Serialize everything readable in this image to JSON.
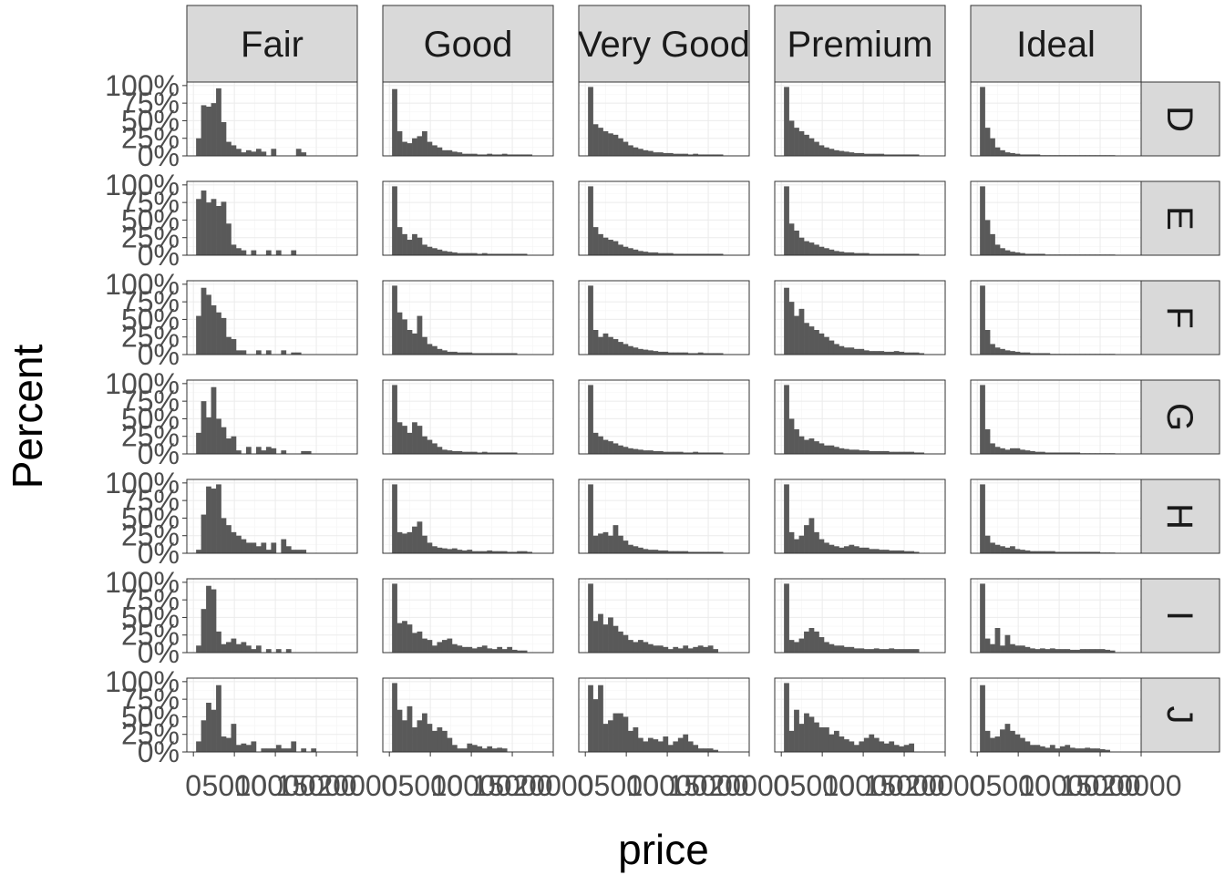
{
  "chart_data": {
    "type": "bar",
    "subtype": "faceted-histogram",
    "xlabel": "price",
    "ylabel": "Percent",
    "facet_cols": [
      "Fair",
      "Good",
      "Very Good",
      "Premium",
      "Ideal"
    ],
    "facet_rows": [
      "D",
      "E",
      "F",
      "G",
      "H",
      "I",
      "J"
    ],
    "x_breaks": [
      0,
      5000,
      10000,
      15000,
      20000
    ],
    "x_tick_labels": [
      "0",
      "5000",
      "10000",
      "15000",
      "20000"
    ],
    "xlim": [
      -800,
      20000
    ],
    "y_breaks": [
      0,
      0.25,
      0.5,
      0.75,
      1
    ],
    "y_tick_labels": [
      "0%",
      "25%",
      "50%",
      "75%",
      "100%"
    ],
    "ylim": [
      0,
      1.05
    ],
    "bin_start": 326,
    "bin_width": 610,
    "grid": true,
    "bar_color": "#595959",
    "strip_fill": "#d9d9d9",
    "panels": {
      "Fair": {
        "D": [
          0.25,
          0.72,
          0.7,
          0.75,
          0.96,
          0.48,
          0.2,
          0.15,
          0.1,
          0.05,
          0.08,
          0.06,
          0.1,
          0.06,
          0,
          0.1,
          0,
          0,
          0,
          0,
          0.1,
          0.05,
          0,
          0,
          0,
          0,
          0,
          0,
          0,
          0,
          0
        ],
        "E": [
          0.8,
          0.92,
          0.75,
          0.8,
          0.7,
          0.76,
          0.45,
          0.15,
          0.1,
          0.07,
          0,
          0.07,
          0,
          0,
          0.07,
          0,
          0.07,
          0,
          0,
          0.07,
          0,
          0,
          0,
          0,
          0,
          0,
          0,
          0,
          0,
          0,
          0
        ],
        "F": [
          0.55,
          0.95,
          0.85,
          0.7,
          0.6,
          0.52,
          0.25,
          0.22,
          0.06,
          0.06,
          0,
          0,
          0.06,
          0,
          0.06,
          0,
          0,
          0.06,
          0,
          0.03,
          0.03,
          0,
          0,
          0,
          0,
          0,
          0,
          0,
          0,
          0,
          0
        ],
        "G": [
          0.3,
          0.75,
          0.52,
          0.95,
          0.5,
          0.38,
          0.22,
          0.25,
          0.05,
          0,
          0.1,
          0,
          0.1,
          0.05,
          0.1,
          0.08,
          0,
          0.05,
          0,
          0,
          0,
          0.04,
          0.04,
          0,
          0,
          0,
          0,
          0,
          0,
          0,
          0
        ],
        "H": [
          0.05,
          0.55,
          0.95,
          0.92,
          0.98,
          0.5,
          0.4,
          0.3,
          0.25,
          0.2,
          0.15,
          0.15,
          0.1,
          0.15,
          0.05,
          0.15,
          0,
          0.2,
          0.1,
          0.05,
          0.05,
          0.05,
          0,
          0,
          0,
          0,
          0,
          0,
          0,
          0,
          0
        ],
        "I": [
          0.1,
          0.62,
          0.95,
          0.9,
          0.3,
          0.12,
          0.15,
          0.2,
          0.12,
          0.15,
          0.1,
          0.05,
          0.1,
          0,
          0.05,
          0,
          0.05,
          0,
          0.05,
          0,
          0,
          0,
          0,
          0,
          0,
          0,
          0,
          0,
          0,
          0,
          0
        ],
        "J": [
          0.15,
          0.45,
          0.7,
          0.6,
          0.95,
          0.22,
          0.2,
          0.4,
          0.1,
          0.12,
          0.1,
          0.15,
          0,
          0.05,
          0.05,
          0.05,
          0.1,
          0.05,
          0.05,
          0.15,
          0,
          0.05,
          0,
          0.05,
          0,
          0,
          0,
          0,
          0,
          0,
          0
        ]
      },
      "Good": {
        "D": [
          0.95,
          0.35,
          0.2,
          0.18,
          0.25,
          0.28,
          0.35,
          0.2,
          0.15,
          0.12,
          0.08,
          0.08,
          0.06,
          0.05,
          0.03,
          0.03,
          0.03,
          0.02,
          0.02,
          0.03,
          0.02,
          0.02,
          0.03,
          0.02,
          0.02,
          0.02,
          0.02,
          0.02,
          0,
          0,
          0
        ],
        "E": [
          0.98,
          0.4,
          0.3,
          0.22,
          0.3,
          0.25,
          0.15,
          0.12,
          0.1,
          0.08,
          0.06,
          0.05,
          0.04,
          0.03,
          0.03,
          0.03,
          0.03,
          0.02,
          0.03,
          0.02,
          0.02,
          0.02,
          0.02,
          0.02,
          0.02,
          0.02,
          0.02,
          0,
          0,
          0,
          0
        ],
        "F": [
          0.98,
          0.6,
          0.5,
          0.35,
          0.3,
          0.55,
          0.25,
          0.15,
          0.12,
          0.08,
          0.06,
          0.04,
          0.04,
          0.03,
          0.03,
          0.03,
          0.02,
          0.02,
          0.02,
          0.02,
          0.02,
          0.02,
          0.02,
          0.02,
          0.02,
          0,
          0,
          0,
          0,
          0,
          0
        ],
        "G": [
          0.98,
          0.45,
          0.4,
          0.3,
          0.45,
          0.4,
          0.25,
          0.2,
          0.15,
          0.1,
          0.06,
          0.05,
          0.04,
          0.04,
          0.03,
          0.03,
          0.03,
          0.02,
          0.03,
          0.02,
          0.02,
          0.02,
          0.02,
          0.02,
          0.02,
          0,
          0,
          0,
          0,
          0,
          0
        ],
        "H": [
          0.98,
          0.3,
          0.28,
          0.3,
          0.38,
          0.45,
          0.25,
          0.15,
          0.1,
          0.08,
          0.07,
          0.06,
          0.07,
          0.05,
          0.04,
          0.05,
          0.03,
          0.03,
          0.03,
          0.04,
          0.03,
          0.03,
          0.03,
          0.02,
          0.02,
          0.03,
          0.03,
          0.02,
          0,
          0,
          0
        ],
        "I": [
          0.98,
          0.42,
          0.45,
          0.4,
          0.28,
          0.3,
          0.2,
          0.18,
          0.1,
          0.15,
          0.18,
          0.2,
          0.12,
          0.1,
          0.08,
          0.08,
          0.06,
          0.08,
          0.1,
          0.06,
          0.05,
          0.08,
          0.05,
          0.08,
          0.04,
          0.03,
          0.03,
          0,
          0,
          0,
          0
        ],
        "J": [
          0.98,
          0.6,
          0.45,
          0.65,
          0.35,
          0.45,
          0.55,
          0.4,
          0.3,
          0.35,
          0.3,
          0.2,
          0.1,
          0.05,
          0.05,
          0.12,
          0.1,
          0.08,
          0.05,
          0.08,
          0.05,
          0.06,
          0.05,
          0,
          0,
          0,
          0,
          0,
          0,
          0,
          0
        ]
      },
      "Very Good": {
        "D": [
          0.98,
          0.45,
          0.4,
          0.35,
          0.32,
          0.3,
          0.25,
          0.2,
          0.15,
          0.12,
          0.1,
          0.08,
          0.07,
          0.05,
          0.05,
          0.04,
          0.04,
          0.03,
          0.03,
          0.03,
          0.02,
          0.03,
          0.02,
          0.02,
          0.02,
          0.02,
          0.02,
          0,
          0,
          0,
          0
        ],
        "E": [
          0.98,
          0.4,
          0.3,
          0.25,
          0.22,
          0.2,
          0.15,
          0.12,
          0.1,
          0.08,
          0.06,
          0.05,
          0.04,
          0.04,
          0.03,
          0.03,
          0.03,
          0.02,
          0.02,
          0.02,
          0.02,
          0.02,
          0.02,
          0.02,
          0.02,
          0.02,
          0.02,
          0,
          0,
          0,
          0
        ],
        "F": [
          0.98,
          0.35,
          0.25,
          0.3,
          0.25,
          0.22,
          0.18,
          0.15,
          0.12,
          0.1,
          0.08,
          0.07,
          0.06,
          0.05,
          0.04,
          0.04,
          0.03,
          0.03,
          0.03,
          0.03,
          0.02,
          0.02,
          0.03,
          0.02,
          0.02,
          0.02,
          0.02,
          0,
          0,
          0,
          0
        ],
        "G": [
          0.98,
          0.3,
          0.25,
          0.2,
          0.18,
          0.15,
          0.12,
          0.1,
          0.08,
          0.07,
          0.06,
          0.05,
          0.05,
          0.04,
          0.04,
          0.03,
          0.03,
          0.03,
          0.03,
          0.02,
          0.02,
          0.03,
          0.02,
          0.02,
          0.02,
          0.02,
          0.02,
          0,
          0,
          0,
          0
        ],
        "H": [
          0.98,
          0.25,
          0.28,
          0.3,
          0.25,
          0.4,
          0.25,
          0.18,
          0.12,
          0.1,
          0.08,
          0.06,
          0.05,
          0.05,
          0.04,
          0.04,
          0.03,
          0.03,
          0.03,
          0.03,
          0.02,
          0.02,
          0.02,
          0.02,
          0.02,
          0.02,
          0.02,
          0,
          0,
          0,
          0
        ],
        "I": [
          0.98,
          0.45,
          0.55,
          0.4,
          0.5,
          0.38,
          0.3,
          0.25,
          0.18,
          0.15,
          0.18,
          0.15,
          0.12,
          0.1,
          0.1,
          0.08,
          0.05,
          0.08,
          0.06,
          0.1,
          0.06,
          0.08,
          0.1,
          0.08,
          0.1,
          0.05,
          0,
          0,
          0,
          0,
          0
        ],
        "J": [
          0.95,
          0.75,
          0.95,
          0.4,
          0.45,
          0.55,
          0.55,
          0.5,
          0.3,
          0.35,
          0.2,
          0.15,
          0.2,
          0.18,
          0.15,
          0.22,
          0.1,
          0.15,
          0.2,
          0.25,
          0.15,
          0.1,
          0.05,
          0.05,
          0.05,
          0.03,
          0,
          0,
          0,
          0,
          0
        ]
      },
      "Premium": {
        "D": [
          0.98,
          0.5,
          0.4,
          0.35,
          0.3,
          0.25,
          0.2,
          0.15,
          0.12,
          0.1,
          0.08,
          0.07,
          0.06,
          0.05,
          0.04,
          0.04,
          0.03,
          0.03,
          0.03,
          0.03,
          0.02,
          0.02,
          0.02,
          0.02,
          0.02,
          0.02,
          0.02,
          0,
          0,
          0,
          0
        ],
        "E": [
          0.98,
          0.45,
          0.35,
          0.25,
          0.2,
          0.18,
          0.15,
          0.12,
          0.1,
          0.08,
          0.06,
          0.05,
          0.04,
          0.04,
          0.03,
          0.03,
          0.03,
          0.02,
          0.02,
          0.02,
          0.02,
          0.02,
          0.02,
          0.02,
          0.02,
          0.02,
          0.02,
          0,
          0,
          0,
          0
        ],
        "F": [
          0.95,
          0.75,
          0.55,
          0.65,
          0.45,
          0.4,
          0.35,
          0.3,
          0.25,
          0.2,
          0.15,
          0.12,
          0.1,
          0.1,
          0.08,
          0.08,
          0.06,
          0.05,
          0.05,
          0.05,
          0.04,
          0.04,
          0.05,
          0.04,
          0.03,
          0.03,
          0.03,
          0.02,
          0,
          0,
          0
        ],
        "G": [
          0.98,
          0.5,
          0.35,
          0.25,
          0.2,
          0.22,
          0.18,
          0.15,
          0.12,
          0.12,
          0.1,
          0.08,
          0.07,
          0.06,
          0.06,
          0.05,
          0.05,
          0.04,
          0.04,
          0.04,
          0.04,
          0.03,
          0.03,
          0.03,
          0.03,
          0.03,
          0.02,
          0.02,
          0,
          0,
          0
        ],
        "H": [
          0.98,
          0.3,
          0.2,
          0.25,
          0.4,
          0.5,
          0.3,
          0.2,
          0.15,
          0.12,
          0.1,
          0.08,
          0.1,
          0.12,
          0.1,
          0.08,
          0.08,
          0.06,
          0.06,
          0.05,
          0.05,
          0.04,
          0.04,
          0.04,
          0.03,
          0.03,
          0.02,
          0,
          0,
          0,
          0
        ],
        "I": [
          0.98,
          0.18,
          0.15,
          0.2,
          0.3,
          0.35,
          0.3,
          0.22,
          0.15,
          0.12,
          0.1,
          0.1,
          0.08,
          0.08,
          0.06,
          0.06,
          0.05,
          0.05,
          0.06,
          0.05,
          0.05,
          0.06,
          0.05,
          0.05,
          0.05,
          0.05,
          0.05,
          0,
          0,
          0,
          0
        ],
        "J": [
          0.98,
          0.3,
          0.6,
          0.4,
          0.55,
          0.5,
          0.42,
          0.35,
          0.35,
          0.25,
          0.3,
          0.22,
          0.18,
          0.15,
          0.1,
          0.15,
          0.2,
          0.25,
          0.2,
          0.15,
          0.12,
          0.15,
          0.1,
          0.08,
          0.1,
          0.12,
          0,
          0,
          0,
          0,
          0
        ]
      },
      "Ideal": {
        "D": [
          0.98,
          0.4,
          0.25,
          0.12,
          0.08,
          0.05,
          0.04,
          0.03,
          0.02,
          0.02,
          0.02,
          0.02,
          0.01,
          0.01,
          0.01,
          0.01,
          0.01,
          0.01,
          0.01,
          0.01,
          0.01,
          0.01,
          0.01,
          0.01,
          0.01,
          0.01,
          0.01,
          0,
          0,
          0,
          0
        ],
        "E": [
          0.98,
          0.5,
          0.3,
          0.15,
          0.1,
          0.07,
          0.05,
          0.04,
          0.03,
          0.02,
          0.02,
          0.02,
          0.02,
          0.01,
          0.01,
          0.01,
          0.01,
          0.01,
          0.01,
          0.01,
          0.01,
          0.01,
          0.01,
          0.01,
          0.01,
          0.01,
          0.01,
          0,
          0,
          0,
          0
        ],
        "F": [
          0.98,
          0.35,
          0.15,
          0.1,
          0.08,
          0.06,
          0.05,
          0.04,
          0.03,
          0.03,
          0.02,
          0.02,
          0.02,
          0.02,
          0.01,
          0.01,
          0.01,
          0.01,
          0.01,
          0.01,
          0.01,
          0.01,
          0.01,
          0.01,
          0.01,
          0.01,
          0.01,
          0,
          0,
          0,
          0
        ],
        "G": [
          0.98,
          0.35,
          0.15,
          0.1,
          0.08,
          0.06,
          0.08,
          0.08,
          0.06,
          0.05,
          0.04,
          0.03,
          0.03,
          0.02,
          0.02,
          0.02,
          0.02,
          0.02,
          0.02,
          0.02,
          0.01,
          0.01,
          0.01,
          0.01,
          0.01,
          0.01,
          0.01,
          0,
          0,
          0,
          0
        ],
        "H": [
          0.98,
          0.25,
          0.15,
          0.12,
          0.1,
          0.08,
          0.1,
          0.06,
          0.05,
          0.04,
          0.03,
          0.03,
          0.03,
          0.03,
          0.03,
          0.02,
          0.02,
          0.02,
          0.02,
          0.02,
          0.02,
          0.02,
          0.02,
          0.02,
          0.01,
          0.01,
          0.01,
          0,
          0,
          0,
          0
        ],
        "I": [
          0.98,
          0.2,
          0.12,
          0.35,
          0.1,
          0.25,
          0.12,
          0.1,
          0.1,
          0.08,
          0.06,
          0.05,
          0.06,
          0.05,
          0.06,
          0.05,
          0.05,
          0.05,
          0.04,
          0.04,
          0.05,
          0.05,
          0.05,
          0.05,
          0.05,
          0.04,
          0.03,
          0,
          0,
          0,
          0
        ],
        "J": [
          0.95,
          0.3,
          0.2,
          0.22,
          0.32,
          0.4,
          0.3,
          0.25,
          0.2,
          0.15,
          0.1,
          0.1,
          0.08,
          0.06,
          0.1,
          0.05,
          0.08,
          0.1,
          0.06,
          0.05,
          0.05,
          0.06,
          0.05,
          0.05,
          0.04,
          0.03,
          0,
          0,
          0,
          0,
          0
        ]
      }
    }
  }
}
